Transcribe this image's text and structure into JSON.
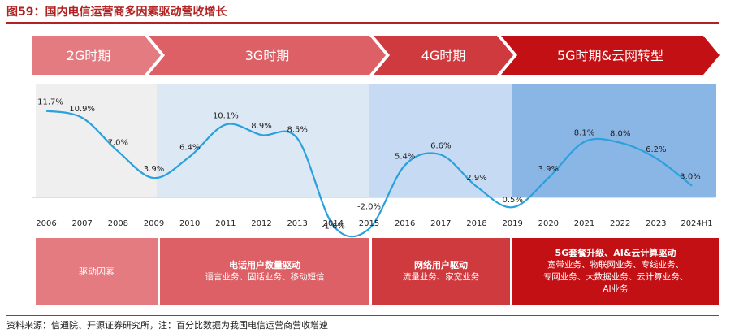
{
  "figure_title": "图59：国内电信运营商多因素驱动营收增长",
  "source_note": "资料来源：信通院、开源证券研究所，注：百分比数据为我国电信运营商营收增速",
  "colors": {
    "era_2g": "#e37b80",
    "era_3g": "#dc6066",
    "era_4g": "#cf3a3f",
    "era_5g": "#c21014",
    "bg_2g": "#efefef",
    "bg_3g": "#dde8f5",
    "bg_4g": "#c6daf3",
    "bg_5g": "#8ab6e5",
    "line": "#2aa0dc",
    "driver_label_bg": "#e37b80",
    "driver_3g_bg": "#dc6066",
    "driver_4g_bg": "#cf3a3f",
    "driver_5g_bg": "#c21014"
  },
  "eras": [
    {
      "label": "2G时期"
    },
    {
      "label": "3G时期"
    },
    {
      "label": "4G时期"
    },
    {
      "label": "5G时期&云网转型"
    }
  ],
  "drivers": {
    "row_label": "驱动因素",
    "items": [
      {
        "title": "电话用户数量驱动",
        "lines": [
          "语言业务、固话业务、移动短信"
        ]
      },
      {
        "title": "网络用户驱动",
        "lines": [
          "流量业务、家宽业务"
        ]
      },
      {
        "title": "5G套餐升级、AI&云计算驱动",
        "lines": [
          "宽带业务、物联网业务、专线业务、",
          "专网业务、大数据业务、云计算业务、",
          "AI业务"
        ]
      }
    ]
  },
  "chart_data": {
    "type": "line",
    "x": [
      "2006",
      "2007",
      "2008",
      "2009",
      "2010",
      "2011",
      "2012",
      "2013",
      "2014",
      "2015",
      "2016",
      "2017",
      "2018",
      "2019",
      "2020",
      "2021",
      "2022",
      "2023",
      "2024H1"
    ],
    "series": [
      {
        "values": [
          11.7,
          10.9,
          7.0,
          3.9,
          6.4,
          10.1,
          8.9,
          8.5,
          -1.6,
          -2.0,
          5.4,
          6.6,
          2.9,
          0.5,
          3.9,
          8.1,
          8.0,
          6.2,
          3.0
        ],
        "labels": [
          "11.7%",
          "10.9%",
          "7.0%",
          "3.9%",
          "6.4%",
          "10.1%",
          "8.9%",
          "8.5%",
          "-1.6%",
          "-2.0%",
          "5.4%",
          "6.6%",
          "2.9%",
          "0.5%",
          "3.9%",
          "8.1%",
          "8.0%",
          "6.2%",
          "3.0%"
        ]
      }
    ],
    "grid": false,
    "legend": "none"
  }
}
